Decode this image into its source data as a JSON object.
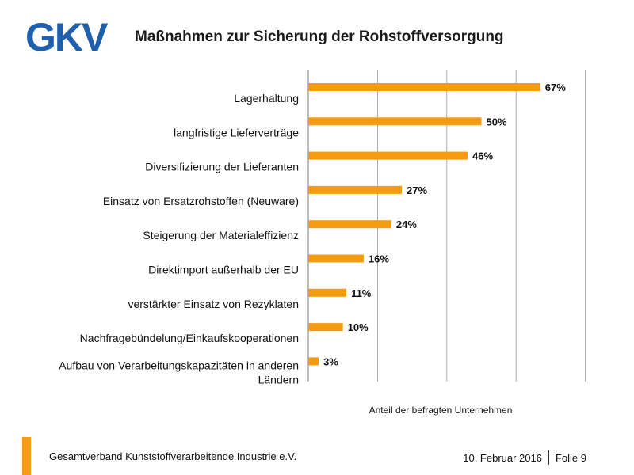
{
  "header": {
    "logo_text": "GKV",
    "title": "Maßnahmen zur Sicherung der Rohstoffversorgung"
  },
  "colors": {
    "bar": "#F39C12",
    "logo": "#1F5FAD",
    "accent": "#F39C12",
    "grid": "#999999"
  },
  "chart_data": {
    "type": "bar",
    "orientation": "horizontal",
    "title": "Maßnahmen zur Sicherung der Rohstoffversorgung",
    "xlabel": "Anteil der befragten Unternehmen",
    "ylabel": "",
    "xlim": [
      0,
      100
    ],
    "grid": "vertical",
    "categories": [
      [
        "Lagerhaltung"
      ],
      [
        "langfristige Lieferverträge"
      ],
      [
        "Diversifizierung der Lieferanten"
      ],
      [
        "Einsatz von Ersatzrohstoffen (Neuware)"
      ],
      [
        "Steigerung der Materialeffizienz"
      ],
      [
        "Direktimport außerhalb der EU"
      ],
      [
        "verstärkter Einsatz von Rezyklaten"
      ],
      [
        "Nachfragebündelung/Einkaufskooperationen"
      ],
      [
        "Aufbau von Verarbeitungskapazitäten in anderen",
        "Ländern"
      ]
    ],
    "values": [
      67,
      50,
      46,
      27,
      24,
      16,
      11,
      10,
      3
    ],
    "value_labels": [
      "67%",
      "50%",
      "46%",
      "27%",
      "24%",
      "16%",
      "11%",
      "10%",
      "3%"
    ]
  },
  "footer": {
    "organization": "Gesamtverband Kunststoffverarbeitende Industrie e.V.",
    "date": "10. Februar 2016",
    "slide": "Folie 9"
  }
}
